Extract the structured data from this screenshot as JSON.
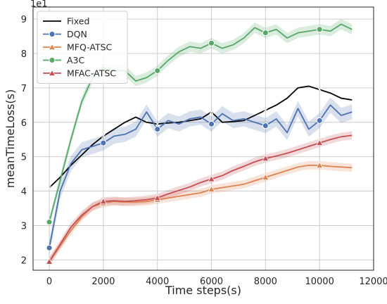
{
  "chart_data": {
    "type": "line",
    "title": "",
    "xlabel": "Time steps(s)",
    "ylabel": "meanTimeLoss(s)",
    "y_offset_label": "1e1",
    "xlim": [
      -600,
      12000
    ],
    "ylim": [
      1.7,
      9.35
    ],
    "x_ticks": [
      0,
      2000,
      4000,
      6000,
      8000,
      10000,
      12000
    ],
    "x_tick_labels": [
      "0",
      "2000",
      "4000",
      "6000",
      "8000",
      "10000",
      "12000"
    ],
    "y_ticks": [
      2,
      3,
      4,
      5,
      6,
      7,
      8,
      9
    ],
    "y_tick_labels": [
      "2",
      "3",
      "4",
      "5",
      "6",
      "7",
      "8",
      "9"
    ],
    "grid": true,
    "legend_position": "top-left",
    "series": [
      {
        "name": "Fixed",
        "color": "#000000",
        "marker": "x",
        "marker_x": [
          0,
          2000,
          4000,
          6000,
          8000,
          10000
        ],
        "band": 0,
        "x": [
          0,
          400,
          800,
          1200,
          1600,
          2000,
          2400,
          2800,
          3200,
          3600,
          4000,
          4400,
          4800,
          5200,
          5600,
          6000,
          6400,
          6800,
          7200,
          7600,
          8000,
          8400,
          8800,
          9200,
          9600,
          10000,
          10400,
          10800,
          11200
        ],
        "y": [
          4.1,
          4.4,
          4.75,
          5.05,
          5.35,
          5.6,
          5.8,
          6.0,
          6.15,
          6.0,
          5.95,
          5.98,
          6.0,
          6.05,
          6.1,
          6.3,
          6.0,
          6.02,
          6.05,
          6.2,
          6.35,
          6.5,
          6.7,
          7.0,
          7.05,
          6.95,
          6.85,
          6.7,
          6.65
        ]
      },
      {
        "name": "DQN",
        "color": "#4c72b0",
        "marker": "circle",
        "marker_x": [
          0,
          2000,
          4000,
          6000,
          8000,
          10000
        ],
        "band": 0.22,
        "x": [
          0,
          400,
          800,
          1200,
          1600,
          2000,
          2400,
          2800,
          3200,
          3600,
          4000,
          4400,
          4800,
          5200,
          5600,
          6000,
          6400,
          6800,
          7200,
          7600,
          8000,
          8400,
          8800,
          9200,
          9600,
          10000,
          10400,
          10800,
          11200
        ],
        "y": [
          2.35,
          4.0,
          4.8,
          5.2,
          5.3,
          5.4,
          5.6,
          5.65,
          5.8,
          6.3,
          5.8,
          6.05,
          5.95,
          6.1,
          6.15,
          5.95,
          6.25,
          6.05,
          6.1,
          6.0,
          5.9,
          6.1,
          5.7,
          6.4,
          5.8,
          6.05,
          6.5,
          6.2,
          6.3
        ]
      },
      {
        "name": "MFQ-ATSC",
        "color": "#dd8452",
        "marker": "triangle",
        "marker_x": [
          0,
          2000,
          4000,
          6000,
          8000,
          10000
        ],
        "band": 0.12,
        "x": [
          0,
          400,
          800,
          1200,
          1600,
          2000,
          2400,
          2800,
          3200,
          3600,
          4000,
          4400,
          4800,
          5200,
          5600,
          6000,
          6400,
          6800,
          7200,
          7600,
          8000,
          8400,
          8800,
          9200,
          9600,
          10000,
          10400,
          10800,
          11200
        ],
        "y": [
          1.95,
          2.4,
          2.85,
          3.25,
          3.55,
          3.65,
          3.7,
          3.68,
          3.68,
          3.7,
          3.75,
          3.8,
          3.85,
          3.9,
          3.95,
          4.05,
          4.1,
          4.15,
          4.2,
          4.3,
          4.4,
          4.5,
          4.6,
          4.7,
          4.75,
          4.75,
          4.72,
          4.7,
          4.68
        ]
      },
      {
        "name": "A3C",
        "color": "#55a868",
        "marker": "circle",
        "marker_x": [
          0,
          2000,
          4000,
          6000,
          8000,
          10000
        ],
        "band": 0.15,
        "x": [
          0,
          400,
          800,
          1200,
          1600,
          2000,
          2400,
          2800,
          3200,
          3600,
          4000,
          4400,
          4800,
          5200,
          5600,
          6000,
          6400,
          6800,
          7200,
          7600,
          8000,
          8400,
          8800,
          9200,
          9600,
          10000,
          10400,
          10800,
          11200
        ],
        "y": [
          3.1,
          4.3,
          5.5,
          6.6,
          7.3,
          7.55,
          7.5,
          7.5,
          7.2,
          7.3,
          7.5,
          7.8,
          8.05,
          8.2,
          8.15,
          8.3,
          8.15,
          8.25,
          8.45,
          8.75,
          8.6,
          8.7,
          8.45,
          8.6,
          8.65,
          8.7,
          8.65,
          8.85,
          8.7
        ]
      },
      {
        "name": "MFAC-ATSC",
        "color": "#c44e52",
        "marker": "triangle",
        "marker_x": [
          0,
          2000,
          4000,
          6000,
          8000,
          10000
        ],
        "band": 0.12,
        "x": [
          0,
          400,
          800,
          1200,
          1600,
          2000,
          2400,
          2800,
          3200,
          3600,
          4000,
          4400,
          4800,
          5200,
          5600,
          6000,
          6400,
          6800,
          7200,
          7600,
          8000,
          8400,
          8800,
          9200,
          9600,
          10000,
          10400,
          10800,
          11200
        ],
        "y": [
          1.95,
          2.45,
          2.95,
          3.3,
          3.55,
          3.7,
          3.72,
          3.7,
          3.72,
          3.75,
          3.8,
          3.92,
          4.02,
          4.12,
          4.25,
          4.35,
          4.45,
          4.6,
          4.72,
          4.85,
          4.95,
          5.02,
          5.1,
          5.2,
          5.3,
          5.4,
          5.5,
          5.58,
          5.62
        ]
      }
    ]
  }
}
